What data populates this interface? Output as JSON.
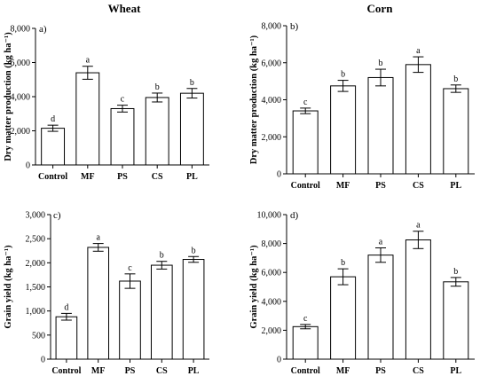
{
  "chart_data": [
    {
      "type": "bar",
      "panel": "a)",
      "title": "Wheat",
      "ylabel": "Dry matter production (kg ha⁻¹)",
      "xlabel": "",
      "categories": [
        "Control",
        "MF",
        "PS",
        "CS",
        "PL"
      ],
      "values": [
        2150,
        5400,
        3300,
        3950,
        4200
      ],
      "errors": [
        180,
        380,
        200,
        260,
        280
      ],
      "letters": [
        "d",
        "a",
        "c",
        "b",
        "b"
      ],
      "ylim": [
        0,
        8000
      ],
      "yticks": [
        0,
        2000,
        4000,
        6000,
        8000
      ],
      "ytick_labels": [
        "0",
        "2,000",
        "4,000",
        "6,000",
        "8,000"
      ],
      "grid": false
    },
    {
      "type": "bar",
      "panel": "b)",
      "title": "Corn",
      "ylabel": "Dry matter production (kg ha⁻¹)",
      "xlabel": "",
      "categories": [
        "Control",
        "MF",
        "PS",
        "CS",
        "PL"
      ],
      "values": [
        3400,
        4750,
        5200,
        5900,
        4600
      ],
      "errors": [
        150,
        300,
        450,
        420,
        200
      ],
      "letters": [
        "c",
        "b",
        "b",
        "a",
        "b"
      ],
      "ylim": [
        0,
        8000
      ],
      "yticks": [
        0,
        2000,
        4000,
        6000,
        8000
      ],
      "ytick_labels": [
        "0",
        "2,000",
        "4,000",
        "6,000",
        "8,000"
      ],
      "grid": false
    },
    {
      "type": "bar",
      "panel": "c)",
      "title": "",
      "ylabel": "Grain yield (kg ha⁻¹)",
      "xlabel": "",
      "categories": [
        "Control",
        "MF",
        "PS",
        "CS",
        "PL"
      ],
      "values": [
        880,
        2320,
        1620,
        1950,
        2070
      ],
      "errors": [
        70,
        80,
        150,
        80,
        60
      ],
      "letters": [
        "d",
        "a",
        "c",
        "b",
        "b"
      ],
      "ylim": [
        0,
        3000
      ],
      "yticks": [
        0,
        500,
        1000,
        1500,
        2000,
        2500,
        3000
      ],
      "ytick_labels": [
        "0",
        "500",
        "1,000",
        "1,500",
        "2,000",
        "2,500",
        "3,000"
      ],
      "grid": false
    },
    {
      "type": "bar",
      "panel": "d)",
      "title": "",
      "ylabel": "Grain yield (kg ha⁻¹)",
      "xlabel": "",
      "categories": [
        "Control",
        "MF",
        "PS",
        "CS",
        "PL"
      ],
      "values": [
        2250,
        5700,
        7200,
        8250,
        5350
      ],
      "errors": [
        150,
        550,
        500,
        600,
        300
      ],
      "letters": [
        "c",
        "b",
        "a",
        "a",
        "b"
      ],
      "ylim": [
        0,
        10000
      ],
      "yticks": [
        0,
        2000,
        4000,
        6000,
        8000,
        10000
      ],
      "ytick_labels": [
        "0",
        "2,000",
        "4,000",
        "6,000",
        "8,000",
        "10,000"
      ],
      "grid": false
    }
  ]
}
